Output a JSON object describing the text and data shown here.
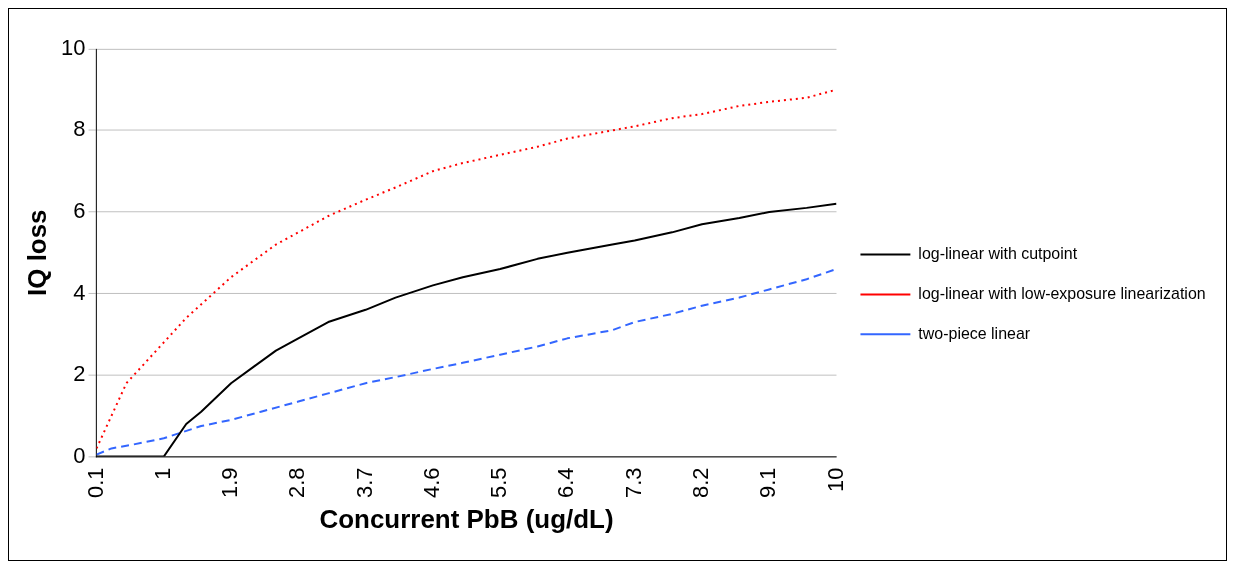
{
  "chart_data": {
    "type": "line",
    "xlabel": "Concurrent PbB (ug/dL)",
    "ylabel": "IQ loss",
    "xlim": [
      0.1,
      10
    ],
    "xticks": [
      0.1,
      1,
      1.9,
      2.8,
      3.7,
      4.6,
      5.5,
      6.4,
      7.3,
      8.2,
      9.1,
      10
    ],
    "ylim": [
      0,
      10
    ],
    "yticks": [
      0,
      2,
      4,
      6,
      8,
      10
    ],
    "grid": "y",
    "legend": "right",
    "marker": "none",
    "series": [
      {
        "name": "log-linear with cutpoint",
        "color": "#000000",
        "line_style": "solid",
        "x": [
          0.1,
          0.5,
          1.0,
          1.3,
          1.5,
          1.9,
          2.2,
          2.5,
          2.8,
          3.2,
          3.7,
          4.1,
          4.6,
          5.0,
          5.5,
          6.0,
          6.4,
          7.0,
          7.3,
          7.8,
          8.2,
          8.7,
          9.1,
          9.6,
          10
        ],
        "values": [
          0,
          0,
          0,
          0.8,
          1.1,
          1.8,
          2.2,
          2.6,
          2.9,
          3.3,
          3.6,
          3.9,
          4.2,
          4.4,
          4.6,
          4.85,
          5.0,
          5.2,
          5.3,
          5.5,
          5.7,
          5.85,
          6.0,
          6.1,
          6.2
        ]
      },
      {
        "name": "log-linear with low-exposure linearization",
        "color": "#ff0000",
        "line_style": "dotted",
        "x": [
          0.1,
          0.3,
          0.5,
          0.8,
          1.0,
          1.3,
          1.6,
          1.9,
          2.2,
          2.5,
          2.8,
          3.2,
          3.7,
          4.1,
          4.6,
          5.0,
          5.5,
          6.0,
          6.4,
          7.0,
          7.3,
          7.8,
          8.2,
          8.7,
          9.1,
          9.6,
          10
        ],
        "values": [
          0.2,
          1.0,
          1.8,
          2.4,
          2.8,
          3.4,
          3.9,
          4.4,
          4.8,
          5.2,
          5.5,
          5.9,
          6.3,
          6.6,
          7.0,
          7.2,
          7.4,
          7.6,
          7.8,
          8.0,
          8.1,
          8.3,
          8.4,
          8.6,
          8.7,
          8.8,
          9.0
        ]
      },
      {
        "name": "two-piece linear",
        "color": "#3366ff",
        "line_style": "dashed",
        "x": [
          0.1,
          0.3,
          0.6,
          1.0,
          1.5,
          1.9,
          2.3,
          2.8,
          3.2,
          3.7,
          4.1,
          4.6,
          5.0,
          5.5,
          6.0,
          6.4,
          7.0,
          7.3,
          7.8,
          8.2,
          8.7,
          9.1,
          9.6,
          10
        ],
        "values": [
          0.05,
          0.2,
          0.3,
          0.45,
          0.75,
          0.9,
          1.1,
          1.35,
          1.55,
          1.8,
          1.95,
          2.15,
          2.3,
          2.5,
          2.7,
          2.9,
          3.1,
          3.3,
          3.5,
          3.7,
          3.9,
          4.1,
          4.35,
          4.6
        ]
      }
    ]
  }
}
